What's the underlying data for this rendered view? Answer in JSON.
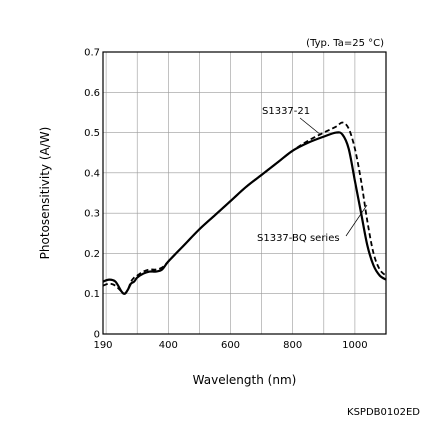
{
  "chart_data": {
    "type": "line",
    "title": "",
    "condition_note": "(Typ. Ta=25 °C)",
    "xlabel": "Wavelength (nm)",
    "ylabel": "Photosensitivity (A/W)",
    "xlim": [
      190,
      1100
    ],
    "ylim": [
      0,
      0.7
    ],
    "x_ticks": [
      190,
      400,
      600,
      800,
      1000
    ],
    "y_ticks": [
      0,
      0.1,
      0.2,
      0.3,
      0.4,
      0.5,
      0.6,
      0.7
    ],
    "y_tick_labels": [
      "0",
      "0.1",
      "0.2",
      "0.3",
      "0.4",
      "0.5",
      "0.6",
      "0.7"
    ],
    "grid": true,
    "series": [
      {
        "name": "S1337-BQ series",
        "style": "solid",
        "x": [
          190,
          210,
          230,
          250,
          260,
          270,
          280,
          290,
          300,
          320,
          340,
          360,
          380,
          400,
          450,
          500,
          550,
          600,
          650,
          700,
          750,
          800,
          850,
          900,
          940,
          960,
          980,
          1000,
          1020,
          1040,
          1060,
          1080,
          1100
        ],
        "y": [
          0.13,
          0.135,
          0.13,
          0.105,
          0.1,
          0.11,
          0.125,
          0.13,
          0.14,
          0.15,
          0.155,
          0.155,
          0.16,
          0.18,
          0.22,
          0.26,
          0.295,
          0.33,
          0.365,
          0.395,
          0.425,
          0.455,
          0.475,
          0.49,
          0.5,
          0.495,
          0.46,
          0.38,
          0.3,
          0.22,
          0.17,
          0.145,
          0.135
        ]
      },
      {
        "name": "S1337-21",
        "style": "dashed",
        "x": [
          190,
          210,
          230,
          250,
          260,
          270,
          280,
          290,
          300,
          320,
          340,
          360,
          380,
          400,
          450,
          500,
          550,
          600,
          650,
          700,
          750,
          800,
          850,
          900,
          940,
          960,
          980,
          1000,
          1020,
          1040,
          1060,
          1080,
          1100
        ],
        "y": [
          0.12,
          0.125,
          0.12,
          0.105,
          0.1,
          0.11,
          0.13,
          0.14,
          0.145,
          0.155,
          0.16,
          0.16,
          0.165,
          0.18,
          0.22,
          0.26,
          0.295,
          0.33,
          0.365,
          0.395,
          0.425,
          0.455,
          0.48,
          0.5,
          0.515,
          0.525,
          0.51,
          0.46,
          0.38,
          0.28,
          0.2,
          0.16,
          0.145
        ]
      }
    ],
    "annotations": [
      {
        "text": "S1337-21",
        "x": 915,
        "y": 0.5
      },
      {
        "text": "S1337-BQ series",
        "x": 1025,
        "y": 0.32
      }
    ]
  },
  "footer_code": "KSPDB0102ED"
}
